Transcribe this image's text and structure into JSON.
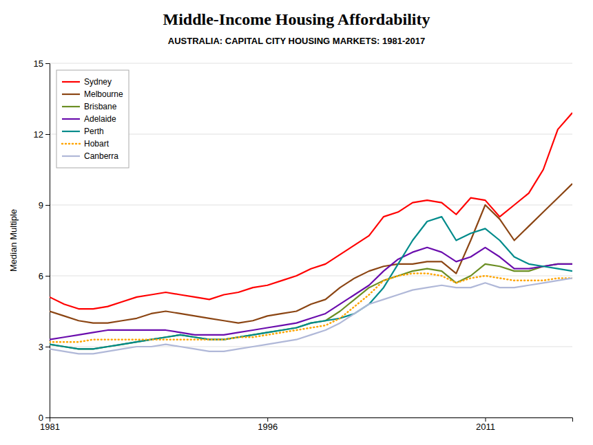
{
  "chart_data": {
    "type": "line",
    "title": "Middle-Income Housing Affordability",
    "subtitle": "AUSTRALIA: CAPITAL CITY HOUSING MARKETS: 1981-2017",
    "ylabel": "Median Multiple",
    "x": [
      1981,
      1982,
      1983,
      1984,
      1985,
      1986,
      1987,
      1988,
      1989,
      1990,
      1991,
      1992,
      1993,
      1994,
      1995,
      1996,
      1997,
      1998,
      1999,
      2000,
      2001,
      2002,
      2003,
      2004,
      2005,
      2006,
      2007,
      2008,
      2009,
      2010,
      2011,
      2012,
      2013,
      2014,
      2015,
      2016,
      2017
    ],
    "xlim": [
      1981,
      2017
    ],
    "xticks": [
      1981,
      1996,
      2011
    ],
    "ylim": [
      0,
      15
    ],
    "yticks": [
      0,
      3,
      6,
      9,
      12,
      15
    ],
    "grid": true,
    "legend": "top-left",
    "series": [
      {
        "name": "Sydney",
        "color": "#FF0000",
        "line_style": "solid",
        "values": [
          5.1,
          4.8,
          4.6,
          4.6,
          4.7,
          4.9,
          5.1,
          5.2,
          5.3,
          5.2,
          5.1,
          5.0,
          5.2,
          5.3,
          5.5,
          5.6,
          5.8,
          6.0,
          6.3,
          6.5,
          6.9,
          7.3,
          7.7,
          8.5,
          8.7,
          9.1,
          9.2,
          9.1,
          8.6,
          9.3,
          9.2,
          8.5,
          9.0,
          9.5,
          10.5,
          12.2,
          12.9
        ]
      },
      {
        "name": "Melbourne",
        "color": "#8B4513",
        "line_style": "solid",
        "values": [
          4.5,
          4.3,
          4.1,
          4.0,
          4.0,
          4.1,
          4.2,
          4.4,
          4.5,
          4.4,
          4.3,
          4.2,
          4.1,
          4.0,
          4.1,
          4.3,
          4.4,
          4.5,
          4.8,
          5.0,
          5.5,
          5.9,
          6.2,
          6.4,
          6.5,
          6.5,
          6.6,
          6.6,
          6.1,
          7.5,
          9.0,
          8.4,
          7.5,
          8.1,
          8.7,
          9.3,
          9.9
        ]
      },
      {
        "name": "Brisbane",
        "color": "#6B8E23",
        "line_style": "solid",
        "values": [
          3.1,
          3.0,
          2.9,
          2.9,
          3.0,
          3.1,
          3.2,
          3.3,
          3.4,
          3.5,
          3.4,
          3.3,
          3.3,
          3.4,
          3.5,
          3.6,
          3.7,
          3.8,
          4.0,
          4.1,
          4.5,
          5.0,
          5.5,
          5.8,
          6.0,
          6.2,
          6.3,
          6.2,
          5.7,
          6.0,
          6.5,
          6.4,
          6.2,
          6.2,
          6.4,
          6.5,
          6.5
        ]
      },
      {
        "name": "Adelaide",
        "color": "#6A0DAD",
        "line_style": "solid",
        "values": [
          3.3,
          3.4,
          3.5,
          3.6,
          3.7,
          3.7,
          3.7,
          3.7,
          3.7,
          3.6,
          3.5,
          3.5,
          3.5,
          3.6,
          3.7,
          3.8,
          3.9,
          4.0,
          4.2,
          4.4,
          4.8,
          5.2,
          5.6,
          6.2,
          6.7,
          7.0,
          7.2,
          7.0,
          6.6,
          6.8,
          7.2,
          6.8,
          6.3,
          6.3,
          6.4,
          6.5,
          6.5
        ]
      },
      {
        "name": "Perth",
        "color": "#008B8B",
        "line_style": "solid",
        "values": [
          3.1,
          3.0,
          2.9,
          2.9,
          3.0,
          3.1,
          3.2,
          3.3,
          3.4,
          3.5,
          3.4,
          3.3,
          3.3,
          3.4,
          3.5,
          3.6,
          3.7,
          3.8,
          4.0,
          4.1,
          4.2,
          4.4,
          4.8,
          5.5,
          6.5,
          7.5,
          8.3,
          8.5,
          7.5,
          7.8,
          8.0,
          7.5,
          6.8,
          6.5,
          6.4,
          6.3,
          6.2
        ]
      },
      {
        "name": "Hobart",
        "color": "#FFA500",
        "line_style": "dotted",
        "values": [
          3.2,
          3.2,
          3.2,
          3.3,
          3.3,
          3.3,
          3.3,
          3.3,
          3.3,
          3.3,
          3.3,
          3.3,
          3.3,
          3.4,
          3.4,
          3.5,
          3.6,
          3.7,
          3.8,
          3.9,
          4.2,
          4.7,
          5.2,
          5.8,
          6.0,
          6.1,
          6.1,
          6.0,
          5.7,
          5.9,
          6.0,
          5.9,
          5.8,
          5.8,
          5.8,
          5.9,
          5.9
        ]
      },
      {
        "name": "Canberra",
        "color": "#B0B8D8",
        "line_style": "solid",
        "values": [
          2.9,
          2.8,
          2.7,
          2.7,
          2.8,
          2.9,
          3.0,
          3.0,
          3.1,
          3.0,
          2.9,
          2.8,
          2.8,
          2.9,
          3.0,
          3.1,
          3.2,
          3.3,
          3.5,
          3.7,
          4.0,
          4.4,
          4.8,
          5.0,
          5.2,
          5.4,
          5.5,
          5.6,
          5.5,
          5.5,
          5.7,
          5.5,
          5.5,
          5.6,
          5.7,
          5.8,
          5.9
        ]
      }
    ]
  }
}
